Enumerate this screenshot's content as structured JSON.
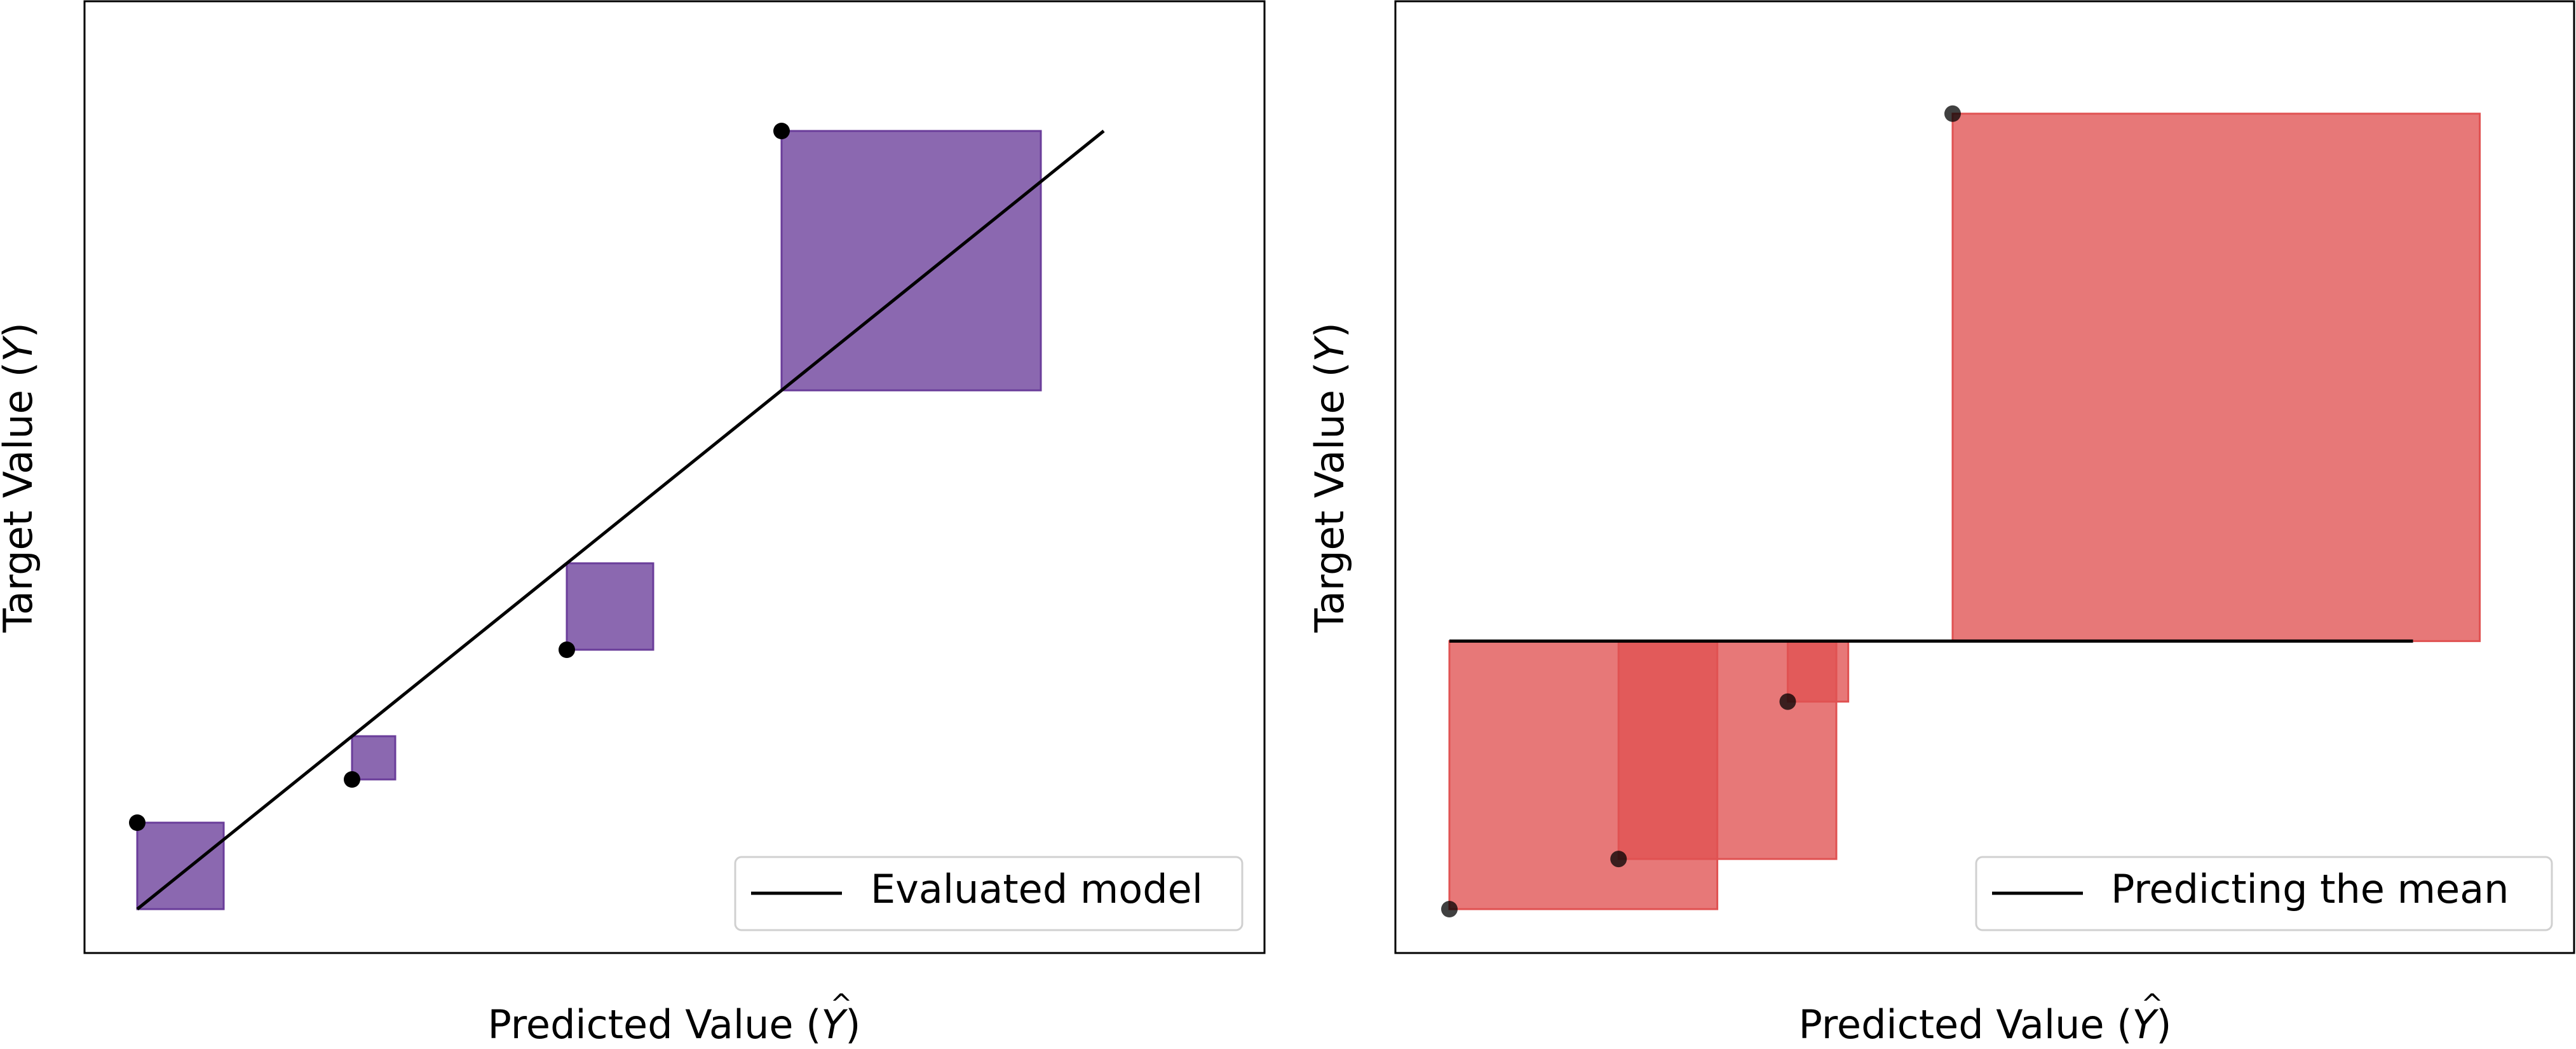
{
  "chart_data": [
    {
      "type": "scatter",
      "xlabel": "Predicted Value (",
      "xlabel_symbol": "Y",
      "xlabel_end": ")",
      "ylabel": "Target Value (",
      "ylabel_symbol": "Y",
      "ylabel_end": ")",
      "xlim": [
        0,
        10
      ],
      "ylim": [
        0,
        10
      ],
      "ticks_shown": false,
      "grid": false,
      "legend": {
        "position": "lower-right",
        "entries": [
          "Evaluated model"
        ]
      },
      "line": {
        "x": [
          0,
          9.0
        ],
        "y": [
          0,
          9.0
        ]
      },
      "points": [
        {
          "x": 0.0,
          "y": 1.0
        },
        {
          "x": 2.0,
          "y": 1.5
        },
        {
          "x": 4.0,
          "y": 3.0
        },
        {
          "x": 6.0,
          "y": 9.0
        }
      ],
      "square_color": "#6a3d9a",
      "square_opacity": 0.78
    },
    {
      "type": "scatter",
      "xlabel": "Predicted Value (",
      "xlabel_symbol": "Y",
      "xlabel_end": ")",
      "ylabel": "Target Value (",
      "ylabel_symbol": "Y",
      "ylabel_end": ")",
      "xlim": [
        0,
        10
      ],
      "ylim": [
        0,
        10
      ],
      "ticks_shown": false,
      "grid": false,
      "legend": {
        "position": "lower-right",
        "entries": [
          "Predicting the mean"
        ]
      },
      "line": {
        "x": [
          0,
          9.0
        ],
        "y": [
          3.1,
          3.1
        ]
      },
      "points": [
        {
          "x": 0.0,
          "y": 0.0
        },
        {
          "x": 1.58,
          "y": 0.58
        },
        {
          "x": 3.16,
          "y": 2.4
        },
        {
          "x": 4.7,
          "y": 9.2
        }
      ],
      "square_color": "#e05252",
      "square_opacity": 0.78
    }
  ]
}
